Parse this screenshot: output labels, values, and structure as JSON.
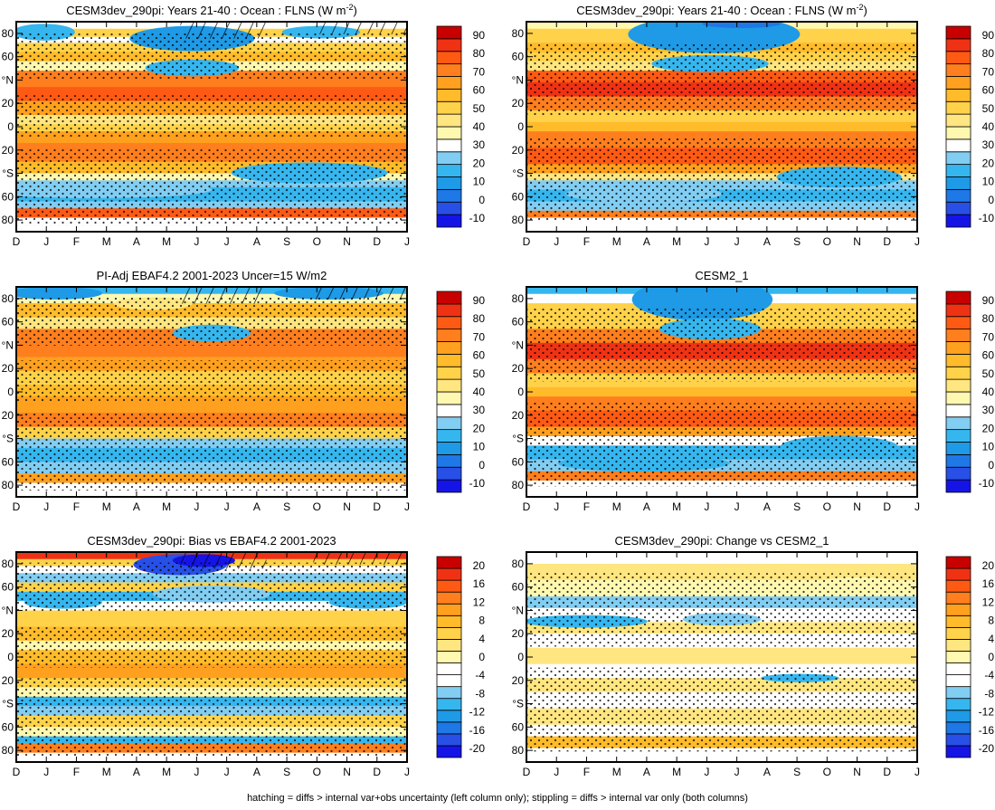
{
  "footer_note": "hatching = diffs > internal var+obs uncertainty (left column only); stippling = diffs > internal var only (both columns)",
  "colors": {
    "abs_scale": [
      "#1414e6",
      "#2850e6",
      "#1e78e6",
      "#1e9ae6",
      "#36b6ee",
      "#82cdf2",
      "#ffffff",
      "#fff8b0",
      "#ffe680",
      "#ffd24a",
      "#ffbb2a",
      "#ffa01e",
      "#ff7e1e",
      "#ff5a14",
      "#f03214",
      "#c80000"
    ],
    "diff_scale": [
      "#1414e6",
      "#2850e6",
      "#1e78e6",
      "#1e9ae6",
      "#36b6ee",
      "#82cdf2",
      "#ffffff",
      "#ffffff",
      "#fff8b0",
      "#ffe680",
      "#ffd24a",
      "#ffbb2a",
      "#ffa01e",
      "#ff7e1e",
      "#ff5a14",
      "#f03214",
      "#c80000"
    ]
  },
  "chart_data": [
    {
      "type": "heatmap",
      "title": "CESM3dev_290pi: Years 21-40 : Ocean : FLNS (W m",
      "title_sup": "-2",
      "title_end": ")",
      "x_tick_labels": [
        "D",
        "J",
        "F",
        "M",
        "A",
        "M",
        "J",
        "J",
        "A",
        "S",
        "O",
        "N",
        "D",
        "J"
      ],
      "y_tick_labels": [
        "80",
        "60",
        "°N",
        "20",
        "0",
        "20",
        "°S",
        "60",
        "80"
      ],
      "y_range": [
        -90,
        90
      ],
      "colorbar_labels": [
        "90",
        "80",
        "70",
        "60",
        "50",
        "40",
        "30",
        "20",
        "10",
        "0",
        "-10"
      ],
      "colorbar_range": [
        -15,
        95
      ],
      "hatching": true,
      "stippling": true
    },
    {
      "type": "heatmap",
      "title": "CESM3dev_290pi: Years 21-40 : Ocean : FLNS (W m",
      "title_sup": "-2",
      "title_end": ")",
      "x_tick_labels": [
        "D",
        "J",
        "F",
        "M",
        "A",
        "M",
        "J",
        "J",
        "A",
        "S",
        "O",
        "N",
        "D",
        "J"
      ],
      "y_tick_labels": [
        "80",
        "60",
        "°N",
        "20",
        "0",
        "20",
        "°S",
        "60",
        "80"
      ],
      "y_range": [
        -90,
        90
      ],
      "colorbar_labels": [
        "90",
        "80",
        "70",
        "60",
        "50",
        "40",
        "30",
        "20",
        "10",
        "0",
        "-10"
      ],
      "colorbar_range": [
        -15,
        95
      ],
      "hatching": false,
      "stippling": true
    },
    {
      "type": "heatmap",
      "title": "PI-Adj EBAF4.2 2001-2023 Uncer=15 W/m2",
      "x_tick_labels": [
        "D",
        "J",
        "F",
        "M",
        "A",
        "M",
        "J",
        "J",
        "A",
        "S",
        "O",
        "N",
        "D",
        "J"
      ],
      "y_tick_labels": [
        "80",
        "60",
        "°N",
        "20",
        "0",
        "20",
        "°S",
        "60",
        "80"
      ],
      "y_range": [
        -90,
        90
      ],
      "colorbar_labels": [
        "90",
        "80",
        "70",
        "60",
        "50",
        "40",
        "30",
        "20",
        "10",
        "0",
        "-10"
      ],
      "colorbar_range": [
        -15,
        95
      ],
      "hatching": true,
      "stippling": true
    },
    {
      "type": "heatmap",
      "title": "CESM2_1",
      "x_tick_labels": [
        "D",
        "J",
        "F",
        "M",
        "A",
        "M",
        "J",
        "J",
        "A",
        "S",
        "O",
        "N",
        "D",
        "J"
      ],
      "y_tick_labels": [
        "80",
        "60",
        "°N",
        "20",
        "0",
        "20",
        "°S",
        "60",
        "80"
      ],
      "y_range": [
        -90,
        90
      ],
      "colorbar_labels": [
        "90",
        "80",
        "70",
        "60",
        "50",
        "40",
        "30",
        "20",
        "10",
        "0",
        "-10"
      ],
      "colorbar_range": [
        -15,
        95
      ],
      "hatching": false,
      "stippling": true
    },
    {
      "type": "heatmap",
      "title": "CESM3dev_290pi: Bias vs EBAF4.2 2001-2023",
      "x_tick_labels": [
        "D",
        "J",
        "F",
        "M",
        "A",
        "M",
        "J",
        "J",
        "A",
        "S",
        "O",
        "N",
        "D",
        "J"
      ],
      "y_tick_labels": [
        "80",
        "60",
        "°N",
        "20",
        "0",
        "20",
        "°S",
        "60",
        "80"
      ],
      "y_range": [
        -90,
        90
      ],
      "colorbar_labels": [
        "20",
        "16",
        "12",
        "8",
        "4",
        "0",
        "-4",
        "-8",
        "-12",
        "-16",
        "-20"
      ],
      "colorbar_range": [
        -22,
        22
      ],
      "hatching": true,
      "stippling": true
    },
    {
      "type": "heatmap",
      "title": "CESM3dev_290pi: Change vs CESM2_1",
      "x_tick_labels": [
        "D",
        "J",
        "F",
        "M",
        "A",
        "M",
        "J",
        "J",
        "A",
        "S",
        "O",
        "N",
        "D",
        "J"
      ],
      "y_tick_labels": [
        "80",
        "60",
        "°N",
        "20",
        "0",
        "20",
        "°S",
        "60",
        "80"
      ],
      "y_range": [
        -90,
        90
      ],
      "colorbar_labels": [
        "20",
        "16",
        "12",
        "8",
        "4",
        "0",
        "-4",
        "-8",
        "-12",
        "-16",
        "-20"
      ],
      "colorbar_range": [
        -22,
        22
      ],
      "hatching": false,
      "stippling": true
    }
  ]
}
